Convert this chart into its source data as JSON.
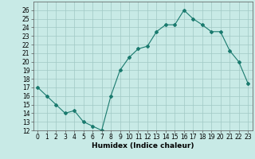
{
  "x": [
    0,
    1,
    2,
    3,
    4,
    5,
    6,
    7,
    8,
    9,
    10,
    11,
    12,
    13,
    14,
    15,
    16,
    17,
    18,
    19,
    20,
    21,
    22,
    23
  ],
  "y": [
    17,
    16,
    15,
    14,
    14.3,
    13,
    12.5,
    12,
    16,
    19,
    20.5,
    21.5,
    21.8,
    23.5,
    24.3,
    24.3,
    26,
    25,
    24.3,
    23.5,
    23.5,
    21.3,
    20,
    17.5
  ],
  "xlabel": "Humidex (Indice chaleur)",
  "xlim": [
    -0.5,
    23.5
  ],
  "ylim": [
    12,
    27
  ],
  "yticks": [
    12,
    13,
    14,
    15,
    16,
    17,
    18,
    19,
    20,
    21,
    22,
    23,
    24,
    25,
    26
  ],
  "xticks": [
    0,
    1,
    2,
    3,
    4,
    5,
    6,
    7,
    8,
    9,
    10,
    11,
    12,
    13,
    14,
    15,
    16,
    17,
    18,
    19,
    20,
    21,
    22,
    23
  ],
  "line_color": "#1a7a6e",
  "marker": "D",
  "marker_size": 2.0,
  "line_width": 0.8,
  "bg_color": "#c8eae6",
  "grid_color": "#a0c8c4",
  "tick_fontsize": 5.5,
  "xlabel_fontsize": 6.5
}
